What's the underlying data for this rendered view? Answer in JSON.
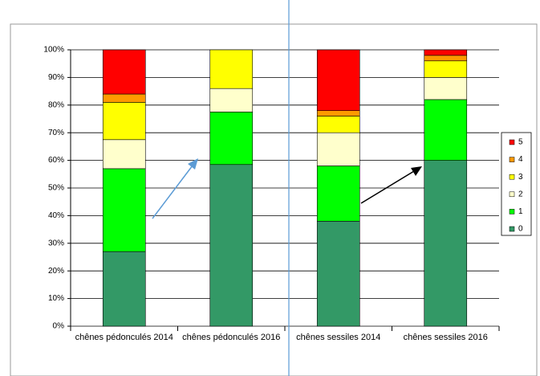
{
  "chart_data": {
    "type": "stacked_bar",
    "categories": [
      "chênes pédonculés 2014",
      "chênes pédonculés 2016",
      "chênes sessiles 2014",
      "chênes sessiles 2016"
    ],
    "series": [
      {
        "name": "0",
        "color": "#339966",
        "values": [
          27,
          58.5,
          38,
          60
        ]
      },
      {
        "name": "1",
        "color": "#00ff00",
        "values": [
          30,
          19,
          20,
          22
        ]
      },
      {
        "name": "2",
        "color": "#ffffcc",
        "values": [
          10.5,
          8.5,
          12,
          8
        ]
      },
      {
        "name": "3",
        "color": "#ffff00",
        "values": [
          13.5,
          14,
          6,
          6
        ]
      },
      {
        "name": "4",
        "color": "#ff9900",
        "values": [
          3,
          0,
          2,
          2
        ]
      },
      {
        "name": "5",
        "color": "#ff0000",
        "values": [
          16,
          0,
          22,
          2
        ]
      }
    ],
    "ylim": [
      0,
      100
    ],
    "yticks": [
      {
        "value": 0,
        "label": "0%"
      },
      {
        "value": 10,
        "label": "10%"
      },
      {
        "value": 20,
        "label": "20%"
      },
      {
        "value": 30,
        "label": "30%"
      },
      {
        "value": 40,
        "label": "40%"
      },
      {
        "value": 50,
        "label": "50%"
      },
      {
        "value": 60,
        "label": "60%"
      },
      {
        "value": 70,
        "label": "70%"
      },
      {
        "value": 80,
        "label": "80%"
      },
      {
        "value": 90,
        "label": "90%"
      },
      {
        "value": 100,
        "label": "100%"
      }
    ],
    "grid": true,
    "legend": "right"
  }
}
